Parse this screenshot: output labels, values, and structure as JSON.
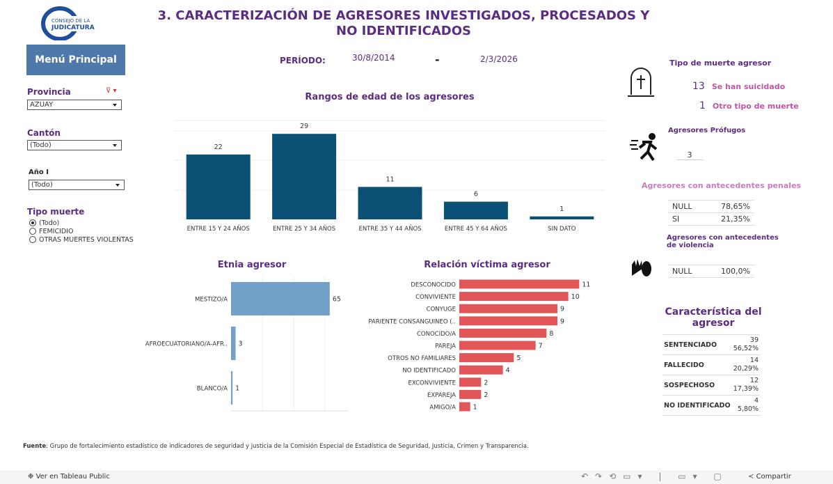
{
  "header": {
    "title": "3. CARACTERIZACIÓN DE AGRESORES INVESTIGADOS, PROCESADOS Y NO IDENTIFICADOS",
    "logo_top": "CONSEJO DE LA",
    "logo_bottom": "JUDICATURA"
  },
  "menu": "Menú Principal",
  "period": {
    "label": "PERÍODO:",
    "start": "30/8/2014",
    "separator": "-",
    "end": "2/3/2026"
  },
  "filters": {
    "provincia": {
      "label": "Provincia",
      "value": "AZUAY"
    },
    "canton": {
      "label": "Cantón",
      "value": "(Todo)"
    },
    "anio": {
      "label": "Año I",
      "value": "(Todo)"
    },
    "tipo_muerte": {
      "label": "Tipo muerte",
      "options": [
        "(Todo)",
        "FEMICIDIO",
        "OTRAS MUERTES VIOLENTAS"
      ]
    }
  },
  "chart_data": [
    {
      "type": "bar",
      "title": "Rangos de edad de los agresores",
      "categories": [
        "ENTRE 15 Y 24 AÑOS",
        "ENTRE 25 Y 34 AÑOS",
        "ENTRE 35 Y 44 AÑOS",
        "ENTRE 45 Y 64 AÑOS",
        "SIN DATO"
      ],
      "values": [
        22,
        29,
        11,
        6,
        1
      ],
      "color": "#0b5176",
      "ylim": [
        0,
        34
      ]
    },
    {
      "type": "hbar",
      "title": "Etnia agresor",
      "categories": [
        "MESTIZO/A",
        "AFROECUATORIANO/A-AFR..",
        "BLANCO/A"
      ],
      "values": [
        65,
        3,
        1
      ],
      "color": "#72a0c6",
      "xlim": [
        0,
        77
      ]
    },
    {
      "type": "hbar",
      "title": "Relación víctima agresor",
      "categories": [
        "DESCONOCIDO",
        "CONVIVIENTE",
        "CONYUGE",
        "PARIENTE CONSANGUINEO (..",
        "CONOCIDO/A",
        "PAREJA",
        "OTROS NO FAMILIARES",
        "NO IDENTIFICADO",
        "EXCONVIVIENTE",
        "EXPAREJA",
        "AMIGO/A"
      ],
      "values": [
        11,
        10,
        9,
        9,
        8,
        7,
        5,
        4,
        2,
        2,
        1
      ],
      "color": "#e15759",
      "xlim": [
        0,
        12
      ]
    }
  ],
  "tipo_muerte_agresor": {
    "title": "Tipo de muerte agresor",
    "rows": [
      {
        "value": "13",
        "label": "Se han suicidado"
      },
      {
        "value": "1",
        "label": "Otro tipo de muerte"
      }
    ]
  },
  "profugos": {
    "title": "Agresores Prófugos",
    "value": "3"
  },
  "antecedentes_penales": {
    "title": "Agresores con antecedentes penales",
    "rows": [
      [
        "NULL",
        "78,65%"
      ],
      [
        "SI",
        "21,35%"
      ]
    ]
  },
  "antecedentes_violencia": {
    "title": "Agresores con antecedentes de violencia",
    "rows": [
      [
        "NULL",
        "100,0%"
      ]
    ]
  },
  "caracteristica": {
    "title": "Característica del agresor",
    "rows": [
      [
        "SENTENCIADO",
        "39",
        "56,52%"
      ],
      [
        "FALLECIDO",
        "14",
        "20,29%"
      ],
      [
        "SOSPECHOSO",
        "12",
        "17,39%"
      ],
      [
        "NO IDENTIFICADO",
        "4",
        "5,80%"
      ]
    ]
  },
  "footer": {
    "source_label": "Fuente",
    "source": ": Grupo de fortalecimiento estadístico de indicadores de seguridad y justicia de la Comisión Especial de Estadística de Seguridad, Justicia, Crimen y Transparencia."
  },
  "toolbar": {
    "view": "Ver en Tableau Public",
    "share": "Compartir"
  }
}
